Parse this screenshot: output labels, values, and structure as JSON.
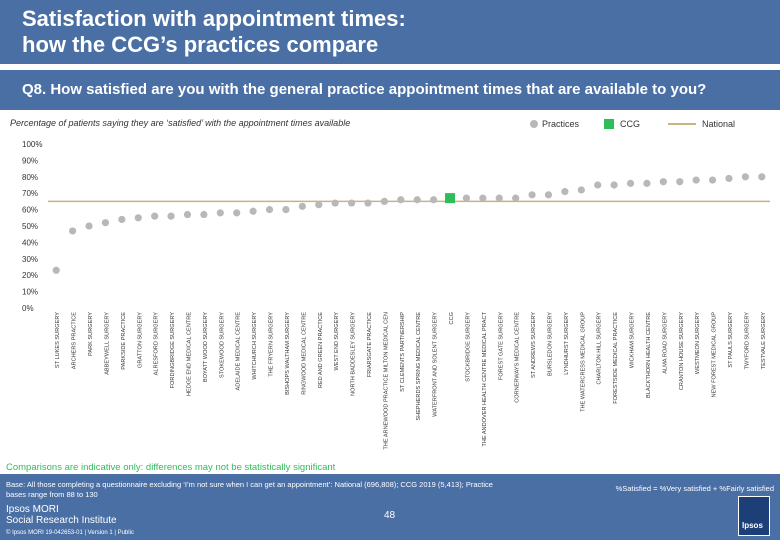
{
  "header": {
    "title": "Satisfaction with appointment times:\nhow the CCG’s practices compare"
  },
  "question": "Q8. How satisfied are you with the general practice appointment times that are available to you?",
  "subtitle": "Percentage of patients saying they are ‘satisfied’ with the appointment times available",
  "legend": {
    "practices": "Practices",
    "ccg": "CCG",
    "national": "National"
  },
  "colors": {
    "practice": "#b8b8b8",
    "ccg": "#2ebd59",
    "national": "#c9b37e",
    "header": "#4a6fa5"
  },
  "chart_data": {
    "type": "scatter",
    "title": "Percentage of patients saying they are ‘satisfied’ with the appointment times available",
    "ylim": [
      0,
      100
    ],
    "yticks": [
      "0%",
      "10%",
      "20%",
      "30%",
      "40%",
      "50%",
      "60%",
      "70%",
      "80%",
      "90%",
      "100%"
    ],
    "national": 65,
    "points": [
      {
        "label": "ST LUKES SURGERY",
        "value": 23
      },
      {
        "label": "ARCHERS PRACTICE",
        "value": 47
      },
      {
        "label": "PARK SURGERY",
        "value": 50
      },
      {
        "label": "ABBEYWELL SURGERY",
        "value": 52
      },
      {
        "label": "PARKSIDE PRACTICE",
        "value": 54
      },
      {
        "label": "GRATTON SURGERY",
        "value": 55
      },
      {
        "label": "ALRESFORD SURGERY",
        "value": 56
      },
      {
        "label": "FORDINGBRIDGE SURGERY",
        "value": 56
      },
      {
        "label": "HEDGE END MEDICAL CENTRE",
        "value": 57
      },
      {
        "label": "BOYATT WOOD SURGERY",
        "value": 57
      },
      {
        "label": "STOKEWOOD SURGERY",
        "value": 58
      },
      {
        "label": "ADELAIDE MEDICAL CENTRE",
        "value": 58
      },
      {
        "label": "WHITCHURCH SURGERY",
        "value": 59
      },
      {
        "label": "THE FRYERN SURGERY",
        "value": 60
      },
      {
        "label": "BISHOPS WALTHAM SURGERY",
        "value": 60
      },
      {
        "label": "RINGWOOD MEDICAL CENTRE",
        "value": 62
      },
      {
        "label": "RED AND GREEN PRACTICE",
        "value": 63
      },
      {
        "label": "WEST END SURGERY",
        "value": 64
      },
      {
        "label": "NORTH BADDESLEY SURGERY",
        "value": 64
      },
      {
        "label": "FRIARSGATE PRACTICE",
        "value": 64
      },
      {
        "label": "THE ARNEWOOD PRACTICE MILTON MEDICAL CEN",
        "value": 65
      },
      {
        "label": "ST CLEMENTS PARTNERSHIP",
        "value": 66
      },
      {
        "label": "SHEPHERDS SPRING MEDICAL CENTRE",
        "value": 66
      },
      {
        "label": "WATERFRONT AND SOLENT SURGERY",
        "value": 66
      },
      {
        "label": "CCG",
        "value": 67,
        "ccg": true
      },
      {
        "label": "STOCKBRIDGE SURGERY",
        "value": 67
      },
      {
        "label": "THE ANDOVER HEALTH CENTRE MEDICAL PRACT",
        "value": 67
      },
      {
        "label": "FOREST GATE SURGERY",
        "value": 67
      },
      {
        "label": "CORNERWAYS MEDICAL CENTRE",
        "value": 67
      },
      {
        "label": "ST ANDREWS SURGERY",
        "value": 69
      },
      {
        "label": "BURSLEDON SURGERY",
        "value": 69
      },
      {
        "label": "LYNDHURST SURGERY",
        "value": 71
      },
      {
        "label": "THE WATERCRESS MEDICAL GROUP",
        "value": 72
      },
      {
        "label": "CHARLTON HILL SURGERY",
        "value": 75
      },
      {
        "label": "FORESTSIDE MEDICAL PRACTICE",
        "value": 75
      },
      {
        "label": "WICKHAM SURGERY",
        "value": 76
      },
      {
        "label": "BLACKTHORN HEALTH CENTRE",
        "value": 76
      },
      {
        "label": "ALMA ROAD SURGERY",
        "value": 77
      },
      {
        "label": "CRANTON HOUSE SURGERY",
        "value": 77
      },
      {
        "label": "WESTMEON SURGERY",
        "value": 78
      },
      {
        "label": "NEW FOREST MEDICAL GROUP",
        "value": 78
      },
      {
        "label": "ST PAULS SURGERY",
        "value": 79
      },
      {
        "label": "TWYFORD SURGERY",
        "value": 80
      },
      {
        "label": "TESTVALE SURGERY",
        "value": 80
      }
    ]
  },
  "note": "Comparisons are indicative only: differences may not be statistically significant",
  "footer": {
    "base": "Base: All those completing a questionnaire excluding ‘I’m not sure when I can get an appointment’: National (696,808); CCG 2019 (5,413); Practice bases range from 88 to 130",
    "definition": "%Satisfied = %Very satisfied + %Fairly satisfied",
    "logo": "Ipsos MORI\nSocial Research Institute",
    "page": "48",
    "job": "© Ipsos MORI     19-042653-01 | Version 1 | Public",
    "badge": "Ipsos"
  }
}
